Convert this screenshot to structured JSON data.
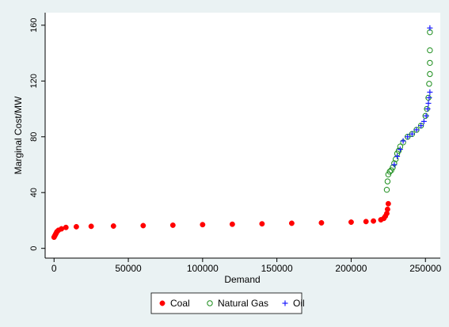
{
  "chart_data": {
    "type": "scatter",
    "x_label": "Demand",
    "y_label": "Marginal Cost/MW",
    "xlim": [
      -6000,
      260000
    ],
    "ylim": [
      -7,
      169
    ],
    "xticks": [
      0,
      50000,
      100000,
      150000,
      200000,
      250000
    ],
    "yticks": [
      0,
      40,
      80,
      120,
      160
    ],
    "grid": false,
    "legend_position": "bottom",
    "series": [
      {
        "name": "Coal",
        "color": "#ff0000",
        "marker": "circle-filled",
        "x": [
          0,
          500,
          1000,
          1500,
          2000,
          3000,
          5000,
          8000,
          15000,
          25000,
          40000,
          60000,
          80000,
          100000,
          120000,
          140000,
          160000,
          180000,
          200000,
          210000,
          215000,
          220000,
          222000,
          223000,
          224000,
          224500,
          225000
        ],
        "values": [
          8,
          9,
          10,
          11,
          12,
          13,
          14,
          15,
          15.5,
          15.8,
          16,
          16.3,
          16.6,
          17,
          17.3,
          17.6,
          18,
          18.3,
          18.8,
          19.2,
          19.6,
          20.5,
          21.5,
          23,
          25,
          28,
          32
        ]
      },
      {
        "name": "Natural Gas",
        "color": "#1a8c1a",
        "marker": "circle-hollow",
        "x": [
          224000,
          224500,
          225000,
          226000,
          227000,
          228000,
          229000,
          230000,
          231000,
          232000,
          233000,
          235000,
          238000,
          241000,
          244000,
          247000,
          250000,
          251000,
          252000,
          252500,
          253000,
          253000,
          253000,
          253000
        ],
        "values": [
          42,
          48,
          53,
          55,
          56,
          58,
          61,
          64,
          68,
          70,
          73,
          76,
          80,
          82,
          85,
          88,
          95,
          100,
          108,
          118,
          125,
          133,
          142,
          155
        ]
      },
      {
        "name": "Oil",
        "color": "#1a1aff",
        "marker": "plus",
        "x": [
          229000,
          231000,
          233000,
          235000,
          238000,
          241000,
          244000,
          247000,
          249000,
          250500,
          251500,
          252000,
          252500,
          253000,
          253000
        ],
        "values": [
          60,
          66,
          71,
          77,
          80,
          82,
          85,
          88,
          91,
          95,
          100,
          104,
          108,
          112,
          158
        ]
      }
    ]
  }
}
